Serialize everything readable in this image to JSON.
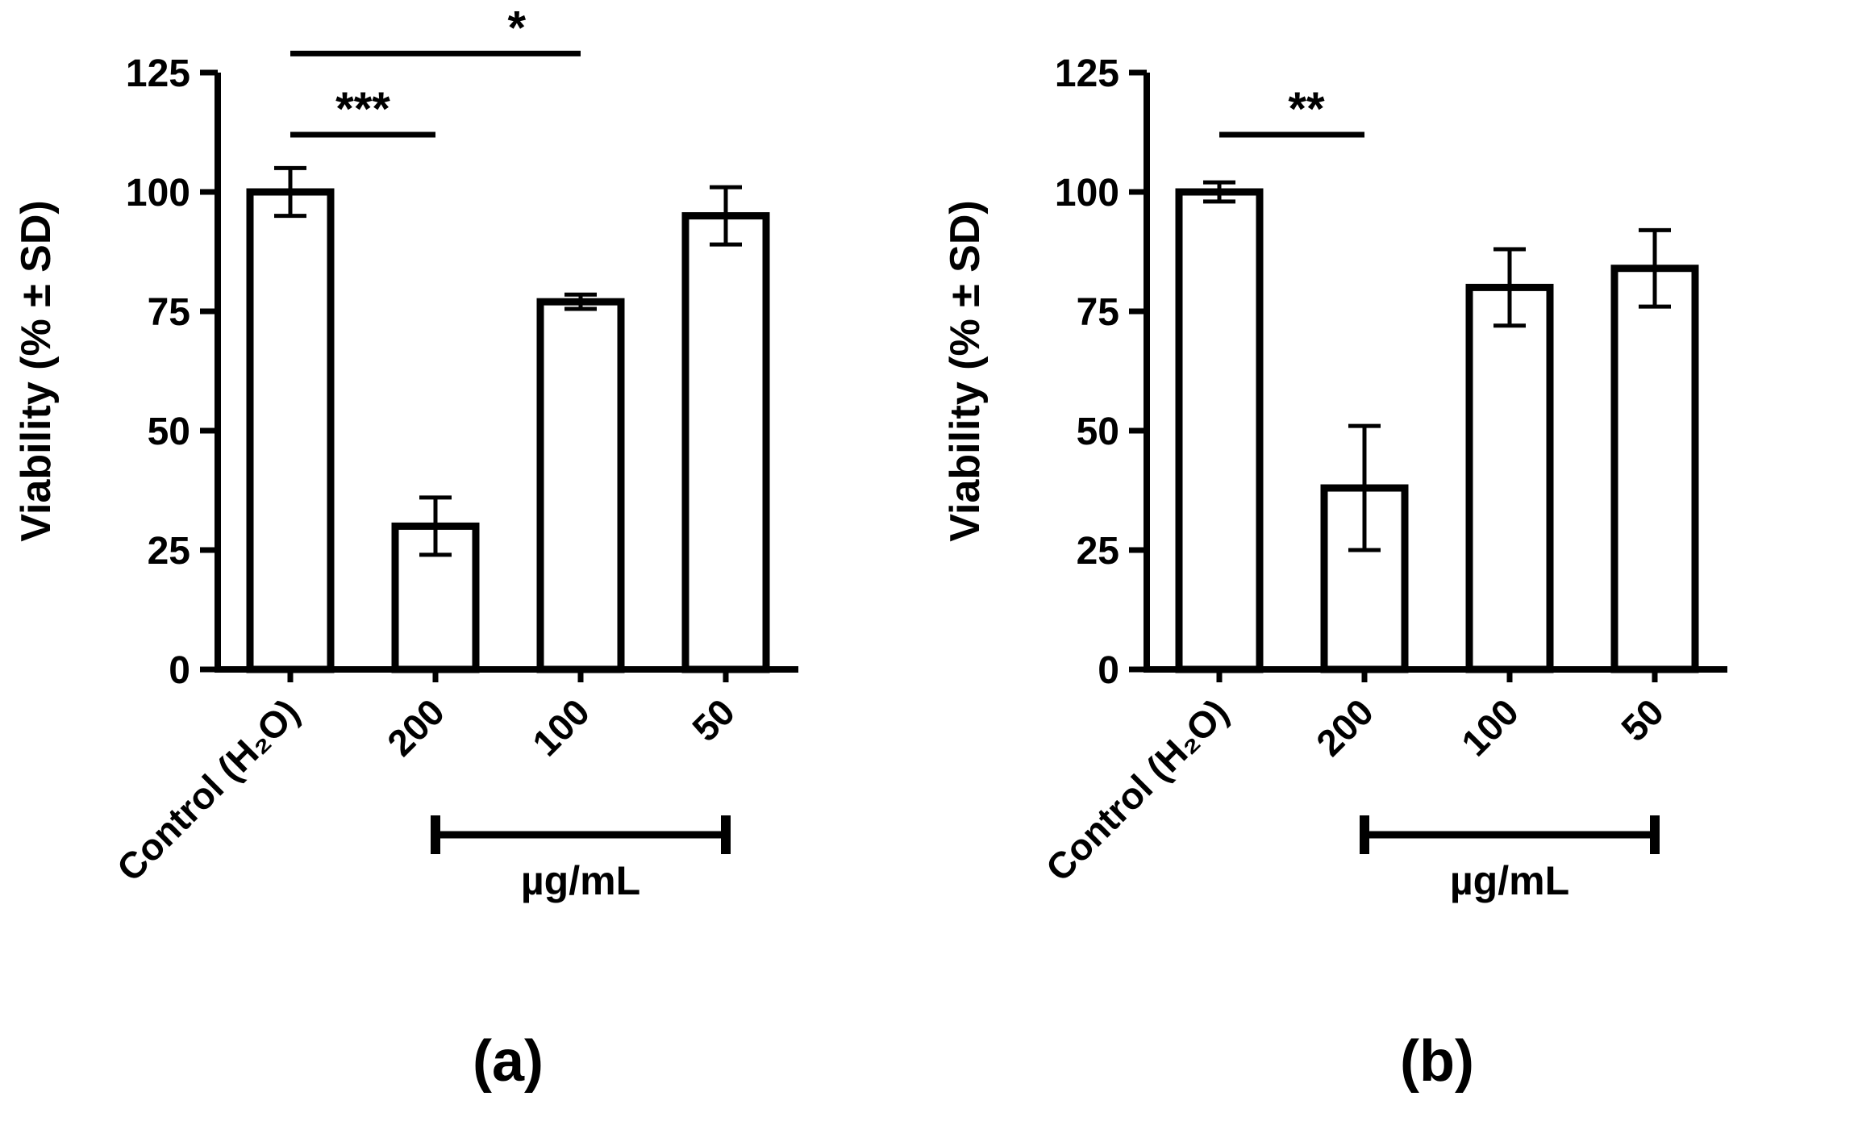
{
  "figure": {
    "background": "#ffffff",
    "ink": "#000000",
    "description": "Two-panel bar chart of cell viability with standard deviation error bars"
  },
  "chart_data": [
    {
      "type": "bar",
      "panel_label": "(a)",
      "title": "",
      "ylabel": "Viability (% ± SD)",
      "xlabel": "",
      "ylim": [
        0,
        125
      ],
      "yticks": [
        0,
        25,
        50,
        75,
        100,
        125
      ],
      "categories": [
        "Control (H₂O)",
        "200",
        "100",
        "50"
      ],
      "values": [
        100,
        30,
        77,
        95
      ],
      "errors": [
        5,
        6,
        1.5,
        6
      ],
      "bar_fill": "#ffffff",
      "bar_stroke": "#000000",
      "grid": false,
      "legend": "none",
      "significance": [
        {
          "from": 0,
          "to": 1,
          "y": 112,
          "label": "***",
          "label_x": 0.5
        },
        {
          "from": 0,
          "to": 2,
          "y": 129,
          "label": "*",
          "label_x": 0.78
        }
      ],
      "unit_bracket": {
        "from": 1,
        "to": 3,
        "label": "µg/mL"
      }
    },
    {
      "type": "bar",
      "panel_label": "(b)",
      "title": "",
      "ylabel": "Viability (% ± SD)",
      "xlabel": "",
      "ylim": [
        0,
        125
      ],
      "yticks": [
        0,
        25,
        50,
        75,
        100,
        125
      ],
      "categories": [
        "Control (H₂O)",
        "200",
        "100",
        "50"
      ],
      "values": [
        100,
        38,
        80,
        84
      ],
      "errors": [
        2,
        13,
        8,
        8
      ],
      "bar_fill": "#ffffff",
      "bar_stroke": "#000000",
      "grid": false,
      "legend": "none",
      "significance": [
        {
          "from": 0,
          "to": 1,
          "y": 112,
          "label": "**",
          "label_x": 0.6
        }
      ],
      "unit_bracket": {
        "from": 1,
        "to": 3,
        "label": "µg/mL"
      }
    }
  ]
}
